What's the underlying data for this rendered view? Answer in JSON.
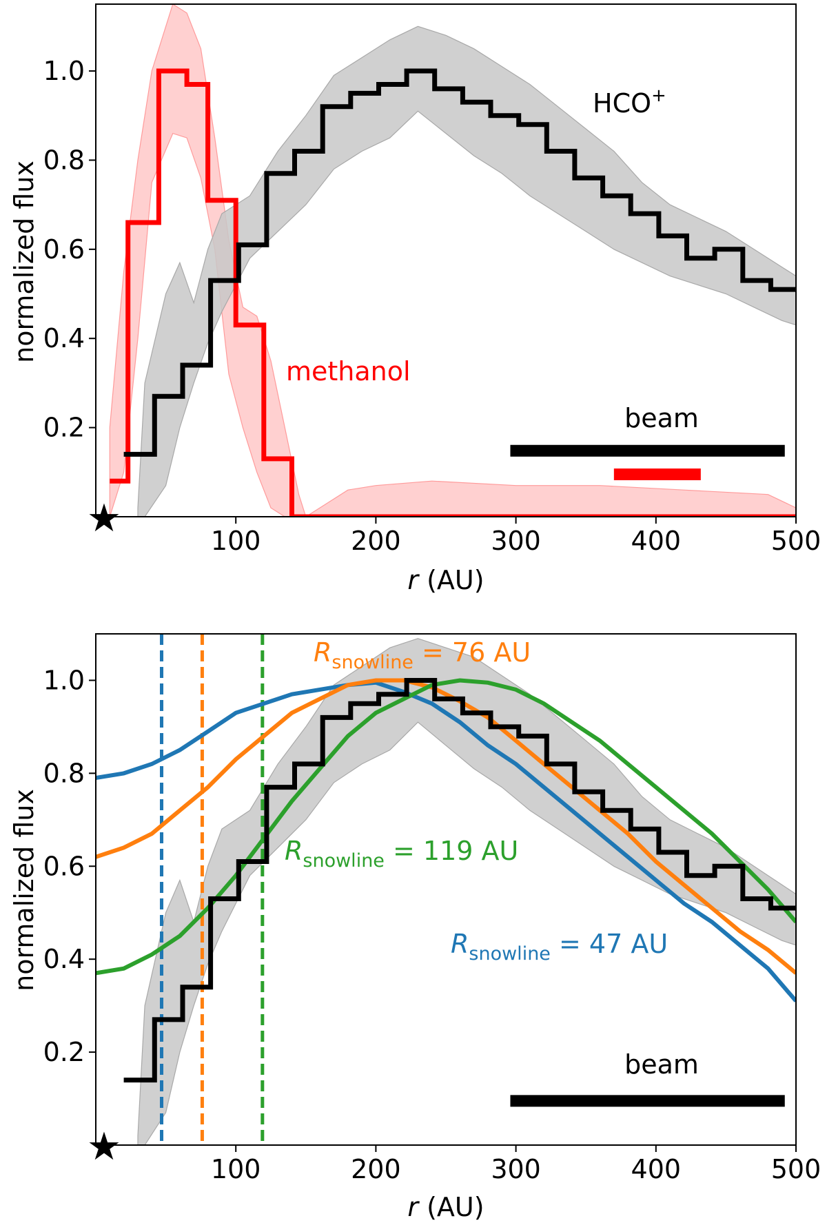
{
  "chart_data": [
    {
      "id": "top",
      "type": "line",
      "xlabel_var": "r",
      "xlabel_unit": " (AU)",
      "ylabel": "normalized flux",
      "xlim": [
        0,
        500
      ],
      "ylim": [
        0,
        1.15
      ],
      "xticks": [
        100,
        200,
        300,
        400,
        500
      ],
      "yticks": [
        0.2,
        0.4,
        0.6,
        0.8,
        1.0
      ],
      "xtick_labels": [
        "100",
        "200",
        "300",
        "400",
        "500"
      ],
      "ytick_labels": [
        "0.2",
        "0.4",
        "0.6",
        "0.8",
        "1.0"
      ],
      "star_label": "★",
      "colors": {
        "hco": "#000000",
        "methanol": "#ff0000",
        "hco_band": "#c8c8c8",
        "methanol_band": "#ffb0b0"
      },
      "series": [
        {
          "name": "methanol",
          "style": "step",
          "color": "#ff0000",
          "edges": [
            10,
            23,
            45,
            65,
            80,
            100,
            120,
            140,
            160,
            180,
            200,
            220,
            240,
            260,
            280,
            300,
            320,
            340,
            360,
            380,
            400,
            420,
            440,
            460,
            480,
            500
          ],
          "values": [
            0.08,
            0.66,
            1.0,
            0.97,
            0.71,
            0.43,
            0.13,
            0.0,
            0.0,
            0.0,
            0.0,
            0.0,
            0.0,
            0.0,
            0.0,
            0.0,
            0.0,
            0.0,
            0.0,
            0.0,
            0.0,
            0.0,
            0.0,
            0.0,
            0.0
          ],
          "band": {
            "x": [
              10,
              20,
              30,
              40,
              55,
              65,
              75,
              85,
              95,
              105,
              115,
              125,
              135,
              145,
              150,
              165,
              180,
              200,
              240,
              300,
              360,
              420,
              480,
              500
            ],
            "upper": [
              0.2,
              0.55,
              0.8,
              1.0,
              1.15,
              1.13,
              1.05,
              0.85,
              0.62,
              0.47,
              0.45,
              0.35,
              0.2,
              0.05,
              0.0,
              0.03,
              0.06,
              0.07,
              0.08,
              0.07,
              0.07,
              0.06,
              0.05,
              0.02
            ],
            "lower": [
              0.0,
              0.1,
              0.4,
              0.75,
              0.86,
              0.85,
              0.76,
              0.6,
              0.32,
              0.2,
              0.1,
              0.02,
              0.0,
              0.0,
              0.0,
              0.0,
              0.0,
              0.0,
              0.0,
              0.0,
              0.0,
              0.0,
              0.0,
              0.0
            ]
          }
        },
        {
          "name": "HCO+",
          "style": "step",
          "color": "#000000",
          "edges": [
            20,
            42,
            62,
            82,
            102,
            122,
            142,
            162,
            182,
            202,
            222,
            242,
            262,
            282,
            302,
            322,
            342,
            362,
            382,
            402,
            422,
            442,
            462,
            482,
            500
          ],
          "values": [
            0.14,
            0.27,
            0.34,
            0.53,
            0.61,
            0.77,
            0.82,
            0.92,
            0.95,
            0.97,
            1.0,
            0.96,
            0.93,
            0.9,
            0.88,
            0.82,
            0.76,
            0.72,
            0.68,
            0.63,
            0.58,
            0.6,
            0.53,
            0.51
          ],
          "band": {
            "x": [
              30,
              35,
              50,
              60,
              70,
              80,
              90,
              110,
              130,
              150,
              170,
              190,
              210,
              230,
              250,
              270,
              290,
              310,
              330,
              350,
              370,
              390,
              410,
              430,
              450,
              470,
              490,
              500
            ],
            "upper": [
              0.02,
              0.3,
              0.5,
              0.57,
              0.48,
              0.6,
              0.68,
              0.72,
              0.82,
              0.9,
              0.99,
              1.03,
              1.07,
              1.1,
              1.08,
              1.05,
              1.01,
              0.97,
              0.92,
              0.87,
              0.82,
              0.75,
              0.7,
              0.67,
              0.64,
              0.6,
              0.56,
              0.54
            ],
            "lower": [
              0.0,
              0.0,
              0.07,
              0.2,
              0.3,
              0.39,
              0.46,
              0.58,
              0.64,
              0.7,
              0.78,
              0.82,
              0.85,
              0.91,
              0.86,
              0.81,
              0.77,
              0.72,
              0.68,
              0.64,
              0.6,
              0.57,
              0.54,
              0.52,
              0.5,
              0.47,
              0.44,
              0.43
            ]
          }
        }
      ],
      "beams": [
        {
          "start": 296,
          "end": 492,
          "y": 0.148,
          "color": "#000000"
        },
        {
          "start": 370,
          "end": 432,
          "y": 0.095,
          "color": "#ff0000"
        }
      ],
      "labels": {
        "hco": "HCO",
        "hco_sup": "+",
        "methanol": "methanol",
        "beam": "beam"
      }
    },
    {
      "id": "bottom",
      "type": "line",
      "xlabel_var": "r",
      "xlabel_unit": " (AU)",
      "ylabel": "normalized flux",
      "xlim": [
        0,
        500
      ],
      "ylim": [
        0,
        1.1
      ],
      "xticks": [
        100,
        200,
        300,
        400,
        500
      ],
      "yticks": [
        0.2,
        0.4,
        0.6,
        0.8,
        1.0
      ],
      "xtick_labels": [
        "100",
        "200",
        "300",
        "400",
        "500"
      ],
      "ytick_labels": [
        "0.2",
        "0.4",
        "0.6",
        "0.8",
        "1.0"
      ],
      "star_label": "★",
      "colors": {
        "hco": "#000000",
        "blue": "#1f77b4",
        "orange": "#ff7f0e",
        "green": "#2ca02c",
        "hco_band": "#c8c8c8"
      },
      "series": [
        {
          "name": "HCO+",
          "style": "step",
          "color": "#000000",
          "edges": [
            20,
            42,
            62,
            82,
            102,
            122,
            142,
            162,
            182,
            202,
            222,
            242,
            262,
            282,
            302,
            322,
            342,
            362,
            382,
            402,
            422,
            442,
            462,
            482,
            500
          ],
          "values": [
            0.14,
            0.27,
            0.34,
            0.53,
            0.61,
            0.77,
            0.82,
            0.92,
            0.95,
            0.97,
            1.0,
            0.96,
            0.93,
            0.9,
            0.88,
            0.82,
            0.76,
            0.72,
            0.68,
            0.63,
            0.58,
            0.6,
            0.53,
            0.51
          ],
          "band": {
            "x": [
              30,
              35,
              50,
              60,
              70,
              80,
              90,
              110,
              130,
              150,
              170,
              190,
              210,
              230,
              250,
              270,
              290,
              310,
              330,
              350,
              370,
              390,
              410,
              430,
              450,
              470,
              490,
              500
            ],
            "upper": [
              0.02,
              0.3,
              0.5,
              0.57,
              0.48,
              0.6,
              0.68,
              0.72,
              0.82,
              0.9,
              0.99,
              1.03,
              1.07,
              1.09,
              1.07,
              1.05,
              1.01,
              0.97,
              0.92,
              0.87,
              0.82,
              0.75,
              0.7,
              0.67,
              0.64,
              0.6,
              0.56,
              0.54
            ],
            "lower": [
              0.0,
              0.0,
              0.07,
              0.2,
              0.3,
              0.39,
              0.46,
              0.58,
              0.64,
              0.7,
              0.78,
              0.82,
              0.85,
              0.91,
              0.86,
              0.81,
              0.77,
              0.72,
              0.68,
              0.64,
              0.6,
              0.57,
              0.54,
              0.52,
              0.5,
              0.47,
              0.44,
              0.43
            ]
          }
        },
        {
          "name": "model R_snowline = 47 AU",
          "style": "line",
          "color": "#1f77b4",
          "x": [
            0,
            20,
            40,
            60,
            80,
            100,
            120,
            140,
            160,
            180,
            200,
            220,
            240,
            260,
            280,
            300,
            320,
            340,
            360,
            380,
            400,
            420,
            440,
            460,
            480,
            500
          ],
          "y": [
            0.79,
            0.8,
            0.82,
            0.85,
            0.89,
            0.93,
            0.95,
            0.97,
            0.98,
            0.99,
            0.995,
            0.975,
            0.95,
            0.91,
            0.86,
            0.82,
            0.77,
            0.72,
            0.67,
            0.62,
            0.57,
            0.52,
            0.48,
            0.43,
            0.38,
            0.31
          ]
        },
        {
          "name": "model R_snowline = 76 AU",
          "style": "line",
          "color": "#ff7f0e",
          "x": [
            0,
            20,
            40,
            60,
            80,
            100,
            120,
            140,
            160,
            180,
            200,
            220,
            240,
            260,
            280,
            300,
            320,
            340,
            360,
            380,
            400,
            420,
            440,
            460,
            480,
            500
          ],
          "y": [
            0.62,
            0.64,
            0.67,
            0.72,
            0.77,
            0.83,
            0.88,
            0.93,
            0.96,
            0.99,
            1.0,
            1.0,
            0.985,
            0.955,
            0.92,
            0.87,
            0.82,
            0.77,
            0.72,
            0.67,
            0.61,
            0.56,
            0.51,
            0.46,
            0.42,
            0.37
          ]
        },
        {
          "name": "model R_snowline = 119 AU",
          "style": "line",
          "color": "#2ca02c",
          "x": [
            0,
            20,
            40,
            60,
            80,
            100,
            120,
            140,
            160,
            180,
            200,
            220,
            240,
            260,
            280,
            300,
            320,
            340,
            360,
            380,
            400,
            420,
            440,
            460,
            480,
            500
          ],
          "y": [
            0.37,
            0.38,
            0.41,
            0.45,
            0.51,
            0.58,
            0.66,
            0.74,
            0.81,
            0.88,
            0.93,
            0.96,
            0.99,
            1.0,
            0.995,
            0.98,
            0.95,
            0.91,
            0.87,
            0.82,
            0.77,
            0.72,
            0.67,
            0.61,
            0.55,
            0.48
          ]
        }
      ],
      "vlines": [
        {
          "x": 47,
          "color": "#1f77b4"
        },
        {
          "x": 76,
          "color": "#ff7f0e"
        },
        {
          "x": 119,
          "color": "#2ca02c"
        }
      ],
      "beams": [
        {
          "start": 296,
          "end": 492,
          "y": 0.095,
          "color": "#000000"
        }
      ],
      "labels": {
        "snow76_R": "R",
        "snow76_sub": "snowline",
        "snow76_val": " =  76 AU",
        "snow119_R": "R",
        "snow119_sub": "snowline",
        "snow119_val": " =  119 AU",
        "snow47_R": "R",
        "snow47_sub": "snowline",
        "snow47_val": " =  47 AU",
        "beam": "beam"
      }
    }
  ]
}
